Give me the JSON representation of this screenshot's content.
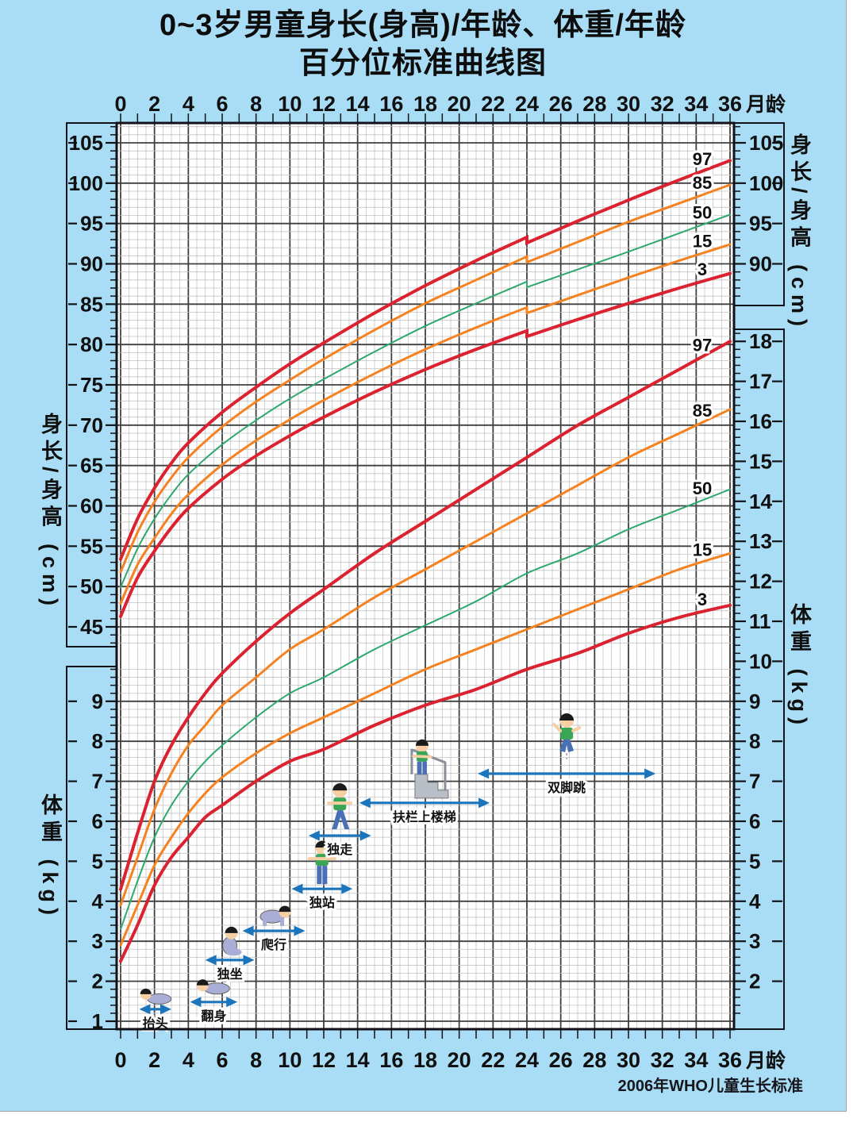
{
  "title": {
    "line1": "0~3岁男童身长(身高)/年龄、体重/年龄",
    "line2": "百分位标准曲线图"
  },
  "source_note": "2006年WHO儿童生长标准",
  "axes": {
    "top_months": {
      "unit": "月龄",
      "ticks": [
        0,
        2,
        4,
        6,
        8,
        10,
        12,
        14,
        16,
        18,
        20,
        22,
        24,
        26,
        28,
        30,
        32,
        34,
        36
      ]
    },
    "bottom_months": {
      "unit": "月龄",
      "ticks": [
        0,
        2,
        4,
        6,
        8,
        10,
        12,
        14,
        16,
        18,
        20,
        22,
        24,
        26,
        28,
        30,
        32,
        34,
        36
      ]
    },
    "left_height": {
      "title": "身长/身高 (cm)",
      "ticks": [
        105,
        100,
        95,
        90,
        85,
        80,
        75,
        70,
        65,
        60,
        55,
        50,
        45
      ]
    },
    "left_weight": {
      "title": "体重 (kg)",
      "ticks": [
        9,
        8,
        7,
        6,
        5,
        4,
        3,
        2,
        1
      ]
    },
    "right_height": {
      "title": "身长/身高 (cm)",
      "ticks": [
        105,
        100,
        95,
        90
      ]
    },
    "right_weight": {
      "title": "体重 (kg)",
      "ticks": [
        18,
        17,
        16,
        15,
        14,
        13,
        12,
        11,
        10,
        9,
        8,
        7,
        6,
        5,
        4,
        3,
        2
      ]
    }
  },
  "chart_data": {
    "type": "line",
    "x_unit": "月龄 (months)",
    "x_range": [
      0,
      36
    ],
    "grid": "on",
    "percentile_labels": [
      "97",
      "85",
      "50",
      "15",
      "3"
    ],
    "height_cm": {
      "y_range": [
        45,
        107
      ],
      "note": "length 0-24mo, standing height 24-36mo (0.7cm step at 24mo)",
      "series": [
        {
          "name": "97",
          "color": "#db2230",
          "length": [
            [
              0,
              53.4
            ],
            [
              1,
              58.4
            ],
            [
              2,
              62.2
            ],
            [
              3,
              65.3
            ],
            [
              4,
              67.8
            ],
            [
              6,
              71.6
            ],
            [
              8,
              74.7
            ],
            [
              10,
              77.6
            ],
            [
              12,
              80.2
            ],
            [
              15,
              83.9
            ],
            [
              18,
              87.3
            ],
            [
              21,
              90.4
            ],
            [
              24,
              93.3
            ]
          ],
          "height": [
            [
              24,
              92.6
            ],
            [
              27,
              95.3
            ],
            [
              30,
              97.9
            ],
            [
              33,
              100.4
            ],
            [
              36,
              102.8
            ]
          ]
        },
        {
          "name": "85",
          "color": "#f58220",
          "length": [
            [
              0,
              51.8
            ],
            [
              1,
              56.7
            ],
            [
              2,
              60.5
            ],
            [
              3,
              63.5
            ],
            [
              4,
              66.0
            ],
            [
              6,
              69.8
            ],
            [
              8,
              72.9
            ],
            [
              10,
              75.6
            ],
            [
              12,
              78.2
            ],
            [
              15,
              81.8
            ],
            [
              18,
              85.1
            ],
            [
              21,
              88.0
            ],
            [
              24,
              90.9
            ]
          ],
          "height": [
            [
              24,
              90.2
            ],
            [
              27,
              92.7
            ],
            [
              30,
              95.2
            ],
            [
              33,
              97.5
            ],
            [
              36,
              99.8
            ]
          ]
        },
        {
          "name": "50",
          "color": "#2fa86e",
          "length": [
            [
              0,
              49.9
            ],
            [
              1,
              54.7
            ],
            [
              2,
              58.4
            ],
            [
              3,
              61.4
            ],
            [
              4,
              63.9
            ],
            [
              6,
              67.6
            ],
            [
              8,
              70.6
            ],
            [
              10,
              73.3
            ],
            [
              12,
              75.7
            ],
            [
              15,
              79.1
            ],
            [
              18,
              82.3
            ],
            [
              21,
              85.1
            ],
            [
              24,
              87.8
            ]
          ],
          "height": [
            [
              24,
              87.1
            ],
            [
              27,
              89.3
            ],
            [
              30,
              91.5
            ],
            [
              33,
              93.8
            ],
            [
              36,
              96.1
            ]
          ]
        },
        {
          "name": "15",
          "color": "#f58220",
          "length": [
            [
              0,
              47.9
            ],
            [
              1,
              52.7
            ],
            [
              2,
              56.0
            ],
            [
              3,
              59.0
            ],
            [
              4,
              61.4
            ],
            [
              6,
              65.1
            ],
            [
              8,
              68.1
            ],
            [
              10,
              70.7
            ],
            [
              12,
              73.1
            ],
            [
              15,
              76.4
            ],
            [
              18,
              79.4
            ],
            [
              21,
              82.1
            ],
            [
              24,
              84.6
            ]
          ],
          "height": [
            [
              24,
              83.9
            ],
            [
              27,
              86.1
            ],
            [
              30,
              88.3
            ],
            [
              33,
              90.4
            ],
            [
              36,
              92.4
            ]
          ]
        },
        {
          "name": "3",
          "color": "#db2230",
          "length": [
            [
              0,
              46.3
            ],
            [
              1,
              51.1
            ],
            [
              2,
              54.4
            ],
            [
              3,
              57.3
            ],
            [
              4,
              59.7
            ],
            [
              6,
              63.3
            ],
            [
              8,
              66.2
            ],
            [
              10,
              68.7
            ],
            [
              12,
              71.0
            ],
            [
              15,
              74.1
            ],
            [
              18,
              76.9
            ],
            [
              21,
              79.4
            ],
            [
              24,
              81.7
            ]
          ],
          "height": [
            [
              24,
              81.0
            ],
            [
              27,
              83.1
            ],
            [
              30,
              85.1
            ],
            [
              33,
              87.0
            ],
            [
              36,
              88.8
            ]
          ]
        }
      ]
    },
    "weight_kg": {
      "y_range": [
        1,
        18.5
      ],
      "series": [
        {
          "name": "97",
          "color": "#db2230",
          "points": [
            [
              0,
              4.3
            ],
            [
              1,
              5.7
            ],
            [
              2,
              7.0
            ],
            [
              3,
              7.9
            ],
            [
              4,
              8.6
            ],
            [
              5,
              9.2
            ],
            [
              6,
              9.7
            ],
            [
              8,
              10.5
            ],
            [
              10,
              11.2
            ],
            [
              12,
              11.8
            ],
            [
              15,
              12.7
            ],
            [
              18,
              13.5
            ],
            [
              21,
              14.3
            ],
            [
              24,
              15.1
            ],
            [
              27,
              15.9
            ],
            [
              30,
              16.6
            ],
            [
              33,
              17.3
            ],
            [
              36,
              18.0
            ]
          ]
        },
        {
          "name": "85",
          "color": "#f58220",
          "points": [
            [
              0,
              3.9
            ],
            [
              1,
              5.1
            ],
            [
              2,
              6.3
            ],
            [
              3,
              7.2
            ],
            [
              4,
              7.9
            ],
            [
              5,
              8.4
            ],
            [
              6,
              8.9
            ],
            [
              8,
              9.6
            ],
            [
              10,
              10.3
            ],
            [
              12,
              10.8
            ],
            [
              15,
              11.6
            ],
            [
              18,
              12.3
            ],
            [
              21,
              13.0
            ],
            [
              24,
              13.7
            ],
            [
              27,
              14.4
            ],
            [
              30,
              15.1
            ],
            [
              33,
              15.7
            ],
            [
              36,
              16.3
            ]
          ]
        },
        {
          "name": "50",
          "color": "#2fa86e",
          "points": [
            [
              0,
              3.3
            ],
            [
              1,
              4.5
            ],
            [
              2,
              5.6
            ],
            [
              3,
              6.4
            ],
            [
              4,
              7.0
            ],
            [
              5,
              7.5
            ],
            [
              6,
              7.9
            ],
            [
              8,
              8.6
            ],
            [
              10,
              9.2
            ],
            [
              12,
              9.6
            ],
            [
              15,
              10.3
            ],
            [
              18,
              10.9
            ],
            [
              21,
              11.5
            ],
            [
              24,
              12.2
            ],
            [
              27,
              12.7
            ],
            [
              30,
              13.3
            ],
            [
              33,
              13.8
            ],
            [
              36,
              14.3
            ]
          ]
        },
        {
          "name": "15",
          "color": "#f58220",
          "points": [
            [
              0,
              2.9
            ],
            [
              1,
              3.9
            ],
            [
              2,
              4.9
            ],
            [
              3,
              5.6
            ],
            [
              4,
              6.2
            ],
            [
              5,
              6.7
            ],
            [
              6,
              7.1
            ],
            [
              8,
              7.7
            ],
            [
              10,
              8.2
            ],
            [
              12,
              8.6
            ],
            [
              15,
              9.2
            ],
            [
              18,
              9.8
            ],
            [
              21,
              10.3
            ],
            [
              24,
              10.8
            ],
            [
              27,
              11.3
            ],
            [
              30,
              11.8
            ],
            [
              33,
              12.3
            ],
            [
              36,
              12.7
            ]
          ]
        },
        {
          "name": "3",
          "color": "#db2230",
          "points": [
            [
              0,
              2.5
            ],
            [
              1,
              3.4
            ],
            [
              2,
              4.4
            ],
            [
              3,
              5.1
            ],
            [
              4,
              5.6
            ],
            [
              5,
              6.1
            ],
            [
              6,
              6.4
            ],
            [
              8,
              7.0
            ],
            [
              10,
              7.5
            ],
            [
              12,
              7.8
            ],
            [
              15,
              8.4
            ],
            [
              18,
              8.9
            ],
            [
              21,
              9.3
            ],
            [
              24,
              9.8
            ],
            [
              27,
              10.2
            ],
            [
              30,
              10.7
            ],
            [
              33,
              11.1
            ],
            [
              36,
              11.4
            ]
          ]
        }
      ]
    }
  },
  "milestones": [
    {
      "label": "抬头",
      "start_month": 1.1,
      "end_month": 3.0,
      "arrow_kg": 1.3,
      "pose": "lying"
    },
    {
      "label": "翻身",
      "start_month": 4.1,
      "end_month": 6.9,
      "arrow_kg": 1.48,
      "pose": "rolling"
    },
    {
      "label": "独坐",
      "start_month": 5.0,
      "end_month": 7.9,
      "arrow_kg": 2.53,
      "pose": "sitting"
    },
    {
      "label": "爬行",
      "start_month": 7.2,
      "end_month": 10.9,
      "arrow_kg": 3.26,
      "pose": "crawling"
    },
    {
      "label": "独站",
      "start_month": 10.1,
      "end_month": 13.7,
      "arrow_kg": 4.31,
      "pose": "standing"
    },
    {
      "label": "独走",
      "start_month": 11.1,
      "end_month": 14.8,
      "arrow_kg": 5.64,
      "pose": "walking"
    },
    {
      "label": "扶栏上楼梯",
      "start_month": 14.1,
      "end_month": 21.8,
      "arrow_kg": 6.46,
      "pose": "stairs"
    },
    {
      "label": "双脚跳",
      "start_month": 21.1,
      "end_month": 31.6,
      "arrow_kg": 7.19,
      "pose": "jumping"
    }
  ],
  "colors": {
    "background": "#a9ddf5",
    "plot_bg": "#ffffff",
    "grid_major": "#3f3f3f",
    "grid_minor": "#c3c3c3",
    "box_border": "#121219",
    "percentile_97_3": "#db2230",
    "percentile_85_15": "#f58220",
    "percentile_50": "#2fa86e",
    "milestone_arrow": "#1b75bc",
    "text": "#101010"
  }
}
